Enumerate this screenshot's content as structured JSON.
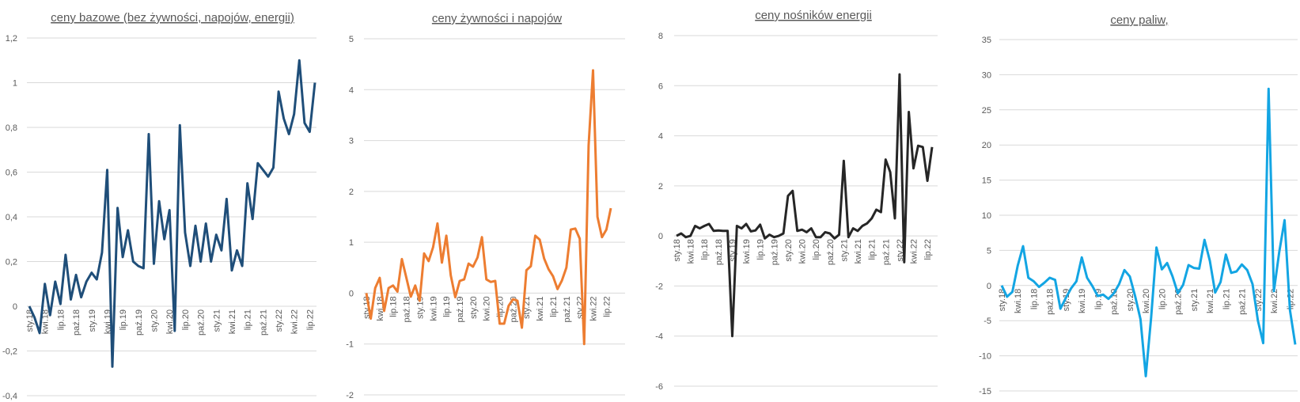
{
  "chart_data": [
    {
      "type": "line",
      "title": "ceny bazowe (bez żywności, napojów, energii)",
      "xlabel": "",
      "ylabel": "",
      "ylim": [
        -0.4,
        1.2
      ],
      "yticks": [
        "1,2",
        "1",
        "0,8",
        "0,6",
        "0,4",
        "0,2",
        "0",
        "-0,2",
        "-0,4"
      ],
      "ytick_values": [
        1.2,
        1,
        0.8,
        0.6,
        0.4,
        0.2,
        0,
        -0.2,
        -0.4
      ],
      "grid": true,
      "color": "#1f4e79",
      "x_tick_labels": [
        "sty.18",
        "kwi.18",
        "lip.18",
        "paź.18",
        "sty.19",
        "kwi.19",
        "lip.19",
        "paź.19",
        "sty.20",
        "kwi.20",
        "lip.20",
        "paź.20",
        "sty.21",
        "kwi.21",
        "lip.21",
        "paź.21",
        "sty.22",
        "kwi.22",
        "lip.22"
      ],
      "values": [
        0,
        -0.05,
        -0.12,
        0.1,
        -0.04,
        0.11,
        0.01,
        0.23,
        0.03,
        0.14,
        0.04,
        0.11,
        0.15,
        0.12,
        0.24,
        0.61,
        -0.27,
        0.44,
        0.22,
        0.34,
        0.2,
        0.18,
        0.17,
        0.77,
        0.19,
        0.47,
        0.3,
        0.43,
        -0.11,
        0.81,
        0.33,
        0.18,
        0.36,
        0.2,
        0.37,
        0.2,
        0.32,
        0.25,
        0.48,
        0.16,
        0.25,
        0.18,
        0.55,
        0.39,
        0.64,
        0.61,
        0.58,
        0.62,
        0.96,
        0.84,
        0.77,
        0.86,
        1.1,
        0.82,
        0.78,
        1.0
      ]
    },
    {
      "type": "line",
      "title": "ceny  żywności i napojów",
      "xlabel": "",
      "ylabel": "",
      "ylim": [
        -2,
        5
      ],
      "yticks": [
        "5",
        "4",
        "3",
        "2",
        "1",
        "0",
        "-1",
        "-2"
      ],
      "ytick_values": [
        5,
        4,
        3,
        2,
        1,
        0,
        -1,
        -2
      ],
      "grid": true,
      "color": "#ed7d31",
      "x_tick_labels": [
        "sty.18",
        "kwi.18",
        "lip.18",
        "paź.18",
        "sty.19",
        "kwi.19",
        "lip.19",
        "paź.19",
        "sty.20",
        "kwi.20",
        "lip.20",
        "paź.20",
        "sty.21",
        "kwi.21",
        "lip.21",
        "paź.21",
        "sty.22",
        "kwi.22",
        "lip.22"
      ],
      "values": [
        0,
        -0.5,
        0.1,
        0.3,
        -0.35,
        0.1,
        0.15,
        0.03,
        0.67,
        0.3,
        -0.07,
        0.15,
        -0.15,
        0.78,
        0.63,
        0.9,
        1.37,
        0.6,
        1.13,
        0.35,
        -0.08,
        0.24,
        0.27,
        0.58,
        0.52,
        0.7,
        1.1,
        0.27,
        0.22,
        0.24,
        -0.6,
        -0.6,
        -0.25,
        -0.12,
        -0.15,
        -0.68,
        0.45,
        0.53,
        1.13,
        1.05,
        0.68,
        0.47,
        0.33,
        0.08,
        0.25,
        0.5,
        1.25,
        1.27,
        1.07,
        -1.0,
        2.9,
        4.38,
        1.5,
        1.1,
        1.25,
        1.67
      ]
    },
    {
      "type": "line",
      "title": "ceny nośników energii",
      "xlabel": "",
      "ylabel": "",
      "ylim": [
        -6,
        8
      ],
      "yticks": [
        "8",
        "6",
        "4",
        "2",
        "0",
        "-2",
        "-4",
        "-6"
      ],
      "ytick_values": [
        8,
        6,
        4,
        2,
        0,
        -2,
        -4,
        -6
      ],
      "grid": true,
      "color": "#262626",
      "x_tick_labels": [
        "sty.18",
        "kwi.18",
        "lip.18",
        "paź.18",
        "sty.19",
        "kwi.19",
        "lip.19",
        "paź.19",
        "sty.20",
        "kwi.20",
        "lip.20",
        "paź.20",
        "sty.21",
        "kwi.21",
        "lip.21",
        "paź.21",
        "sty.22",
        "kwi.22",
        "lip.22"
      ],
      "values": [
        0,
        0.1,
        -0.05,
        0,
        0.4,
        0.3,
        0.4,
        0.48,
        0.2,
        0.22,
        0.2,
        0.2,
        -4.0,
        0.4,
        0.3,
        0.48,
        0.18,
        0.22,
        0.45,
        -0.1,
        0.05,
        -0.05,
        0.0,
        0.1,
        1.6,
        1.8,
        0.2,
        0.25,
        0.15,
        0.3,
        -0.05,
        -0.05,
        0.15,
        0.1,
        -0.1,
        0.05,
        3.0,
        -0.05,
        0.3,
        0.2,
        0.4,
        0.5,
        0.7,
        1.05,
        0.95,
        3.05,
        2.55,
        0.7,
        6.45,
        -1.05,
        4.95,
        2.7,
        3.6,
        3.55,
        2.2,
        3.55
      ]
    },
    {
      "type": "line",
      "title": "ceny paliw,",
      "xlabel": "",
      "ylabel": "",
      "ylim": [
        -15,
        35
      ],
      "yticks": [
        "35",
        "30",
        "25",
        "20",
        "15",
        "10",
        "5",
        "0",
        "-5",
        "-10",
        "-15"
      ],
      "ytick_values": [
        35,
        30,
        25,
        20,
        15,
        10,
        5,
        0,
        -5,
        -10,
        -15
      ],
      "grid": true,
      "color": "#13a5e3",
      "x_tick_labels": [
        "sty.18",
        "kwi.18",
        "lip.18",
        "paź.18",
        "sty.19",
        "kwi.19",
        "lip.19",
        "paź.19",
        "sty.20",
        "kwi.20",
        "lip.20",
        "paź.20",
        "sty.21",
        "kwi.21",
        "lip.21",
        "paź.21",
        "sty.22",
        "kwi.22",
        "lip.22"
      ],
      "values": [
        0,
        -1.6,
        -0.9,
        2.8,
        5.6,
        1.1,
        0.6,
        -0.2,
        0.4,
        1.1,
        0.8,
        -3.3,
        -1.8,
        -0.4,
        0.6,
        4.0,
        1.1,
        -0.1,
        -1.5,
        -1.3,
        -1.9,
        -1.1,
        0.2,
        2.2,
        1.3,
        -1.5,
        -4.8,
        -12.9,
        -4.5,
        5.4,
        2.3,
        3.2,
        1.3,
        -1.1,
        0.1,
        2.9,
        2.5,
        2.4,
        6.5,
        3.5,
        -1.0,
        0.5,
        4.4,
        1.8,
        2.0,
        3.0,
        2.2,
        0.2,
        -5,
        -8.2,
        28,
        -0.8,
        4.8,
        9.3,
        -3.5,
        -8.4
      ]
    }
  ]
}
